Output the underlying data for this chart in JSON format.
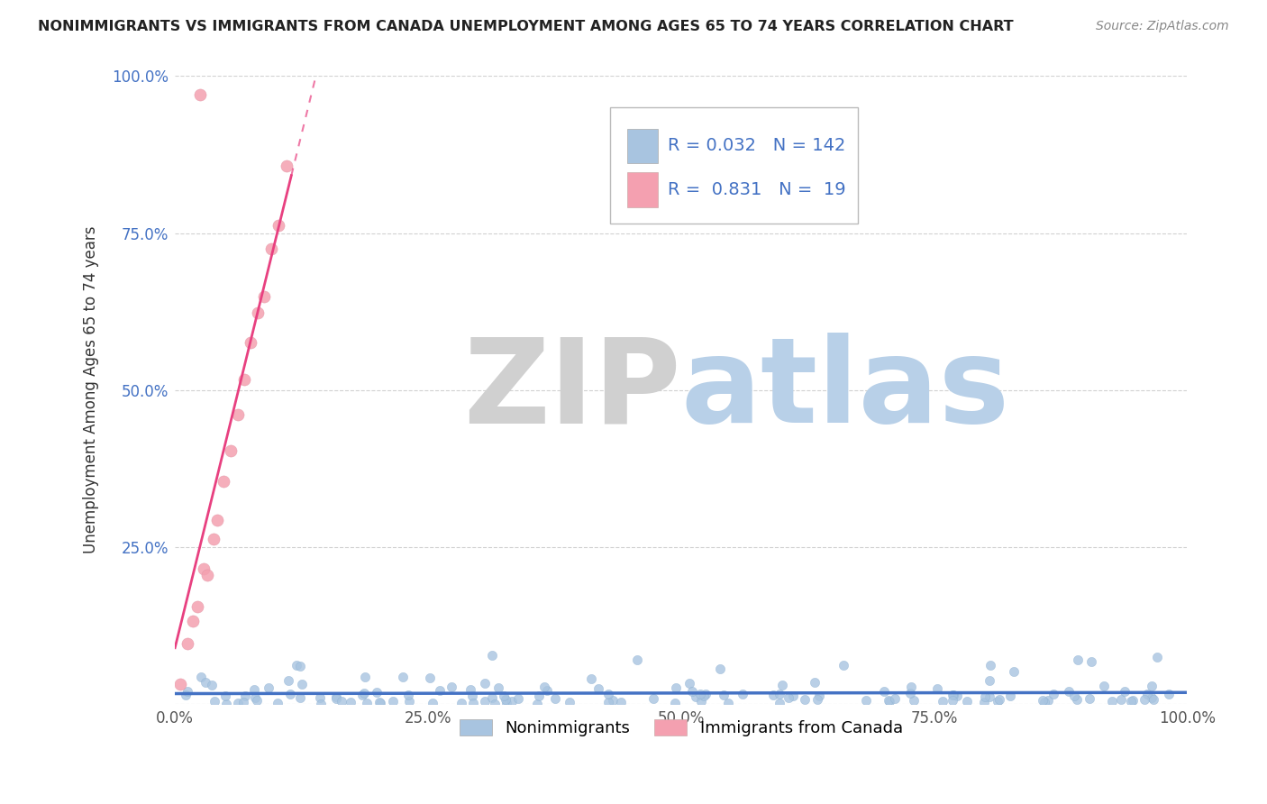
{
  "title": "NONIMMIGRANTS VS IMMIGRANTS FROM CANADA UNEMPLOYMENT AMONG AGES 65 TO 74 YEARS CORRELATION CHART",
  "source": "Source: ZipAtlas.com",
  "ylabel": "Unemployment Among Ages 65 to 74 years",
  "xlim": [
    0,
    1
  ],
  "ylim": [
    0,
    1
  ],
  "xtick_labels": [
    "0.0%",
    "25.0%",
    "50.0%",
    "75.0%",
    "100.0%"
  ],
  "xtick_vals": [
    0,
    0.25,
    0.5,
    0.75,
    1.0
  ],
  "ytick_labels": [
    "",
    "25.0%",
    "50.0%",
    "75.0%",
    "100.0%"
  ],
  "ytick_vals": [
    0,
    0.25,
    0.5,
    0.75,
    1.0
  ],
  "nonimmigrant_color": "#a8c4e0",
  "immigrant_color": "#f4a0b0",
  "nonimmigrant_line_color": "#4472c4",
  "immigrant_line_color": "#e84080",
  "nonimmigrant_R": 0.032,
  "nonimmigrant_N": 142,
  "immigrant_R": 0.831,
  "immigrant_N": 19,
  "legend_color": "#4472c4",
  "watermark_ZIP_color": "#d0d0d0",
  "watermark_atlas_color": "#b8d0e8",
  "background_color": "#ffffff",
  "grid_color": "#cccccc"
}
